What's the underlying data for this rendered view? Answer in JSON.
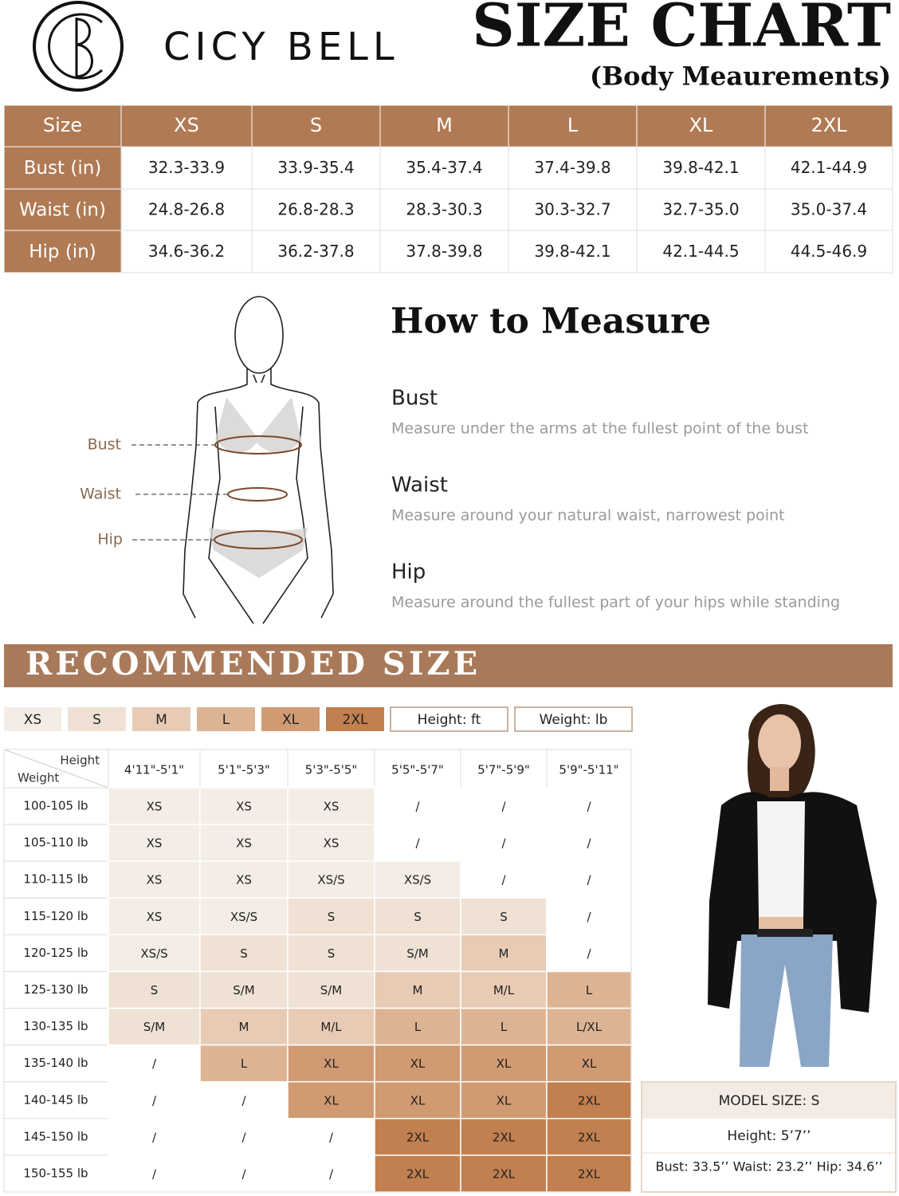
{
  "brand": "CICY BELL",
  "header": {
    "title": "SIZE CHART",
    "subtitle": "(Body Meaurements)"
  },
  "size_table": {
    "header": [
      "Size",
      "XS",
      "S",
      "M",
      "L",
      "XL",
      "2XL"
    ],
    "rows": [
      [
        "Bust (in)",
        "32.3-33.9",
        "33.9-35.4",
        "35.4-37.4",
        "37.4-39.8",
        "39.8-42.1",
        "42.1-44.9"
      ],
      [
        "Waist (in)",
        "24.8-26.8",
        "26.8-28.3",
        "28.3-30.3",
        "30.3-32.7",
        "32.7-35.0",
        "35.0-37.4"
      ],
      [
        "Hip (in)",
        "34.6-36.2",
        "36.2-37.8",
        "37.8-39.8",
        "39.8-42.1",
        "42.1-44.5",
        "44.5-46.9"
      ]
    ]
  },
  "how_to_measure": {
    "title": "How to Measure",
    "figure_labels": [
      "Bust",
      "Waist",
      "Hip"
    ],
    "items": [
      {
        "name": "Bust",
        "description": "Measure under the arms at the fullest point of the bust"
      },
      {
        "name": "Waist",
        "description": "Measure around your natural waist, narrowest point"
      },
      {
        "name": "Hip",
        "description": "Measure around the fullest part of your hips while standing"
      }
    ]
  },
  "recommended": {
    "title": "RECOMMENDED SIZE",
    "legend": [
      {
        "label": "XS",
        "color": "#f4ede6"
      },
      {
        "label": "S",
        "color": "#efe1d4"
      },
      {
        "label": "M",
        "color": "#e8cbb5"
      },
      {
        "label": "L",
        "color": "#ddb493"
      },
      {
        "label": "XL",
        "color": "#d09a72"
      },
      {
        "label": "2XL",
        "color": "#c27f4f"
      },
      {
        "label": "Height: ft"
      },
      {
        "label": "Weight: lb"
      }
    ],
    "table": {
      "corner": [
        "Height",
        "Weight"
      ],
      "heights": [
        "4'11\"-5'1\"",
        "5'1\"-5'3\"",
        "5'3\"-5'5\"",
        "5'5\"-5'7\"",
        "5'7\"-5'9\"",
        "5'9\"-5'11\""
      ],
      "rows": [
        {
          "weight": "100-105 lb",
          "sizes": [
            "XS",
            "XS",
            "XS",
            "/",
            "/",
            "/"
          ]
        },
        {
          "weight": "105-110 lb",
          "sizes": [
            "XS",
            "XS",
            "XS",
            "/",
            "/",
            "/"
          ]
        },
        {
          "weight": "110-115 lb",
          "sizes": [
            "XS",
            "XS",
            "XS/S",
            "XS/S",
            "/",
            "/"
          ]
        },
        {
          "weight": "115-120 lb",
          "sizes": [
            "XS",
            "XS/S",
            "S",
            "S",
            "S",
            "/"
          ]
        },
        {
          "weight": "120-125 lb",
          "sizes": [
            "XS/S",
            "S",
            "S",
            "S/M",
            "M",
            "/"
          ]
        },
        {
          "weight": "125-130 lb",
          "sizes": [
            "S",
            "S/M",
            "S/M",
            "M",
            "M/L",
            "L"
          ]
        },
        {
          "weight": "130-135 lb",
          "sizes": [
            "S/M",
            "M",
            "M/L",
            "L",
            "L",
            "L/XL"
          ]
        },
        {
          "weight": "135-140 lb",
          "sizes": [
            "/",
            "L",
            "XL",
            "XL",
            "XL",
            "XL"
          ]
        },
        {
          "weight": "140-145 lb",
          "sizes": [
            "/",
            "/",
            "XL",
            "XL",
            "XL",
            "2XL"
          ]
        },
        {
          "weight": "145-150 lb",
          "sizes": [
            "/",
            "/",
            "/",
            "2XL",
            "2XL",
            "2XL"
          ]
        },
        {
          "weight": "150-155 lb",
          "sizes": [
            "/",
            "/",
            "/",
            "2XL",
            "2XL",
            "2XL"
          ]
        }
      ]
    }
  },
  "model": {
    "title": "MODEL SIZE: S",
    "height": "Height: 5’7’’",
    "measurements": "Bust: 33.5’’ Waist: 23.2’’ Hip: 34.6’’"
  }
}
